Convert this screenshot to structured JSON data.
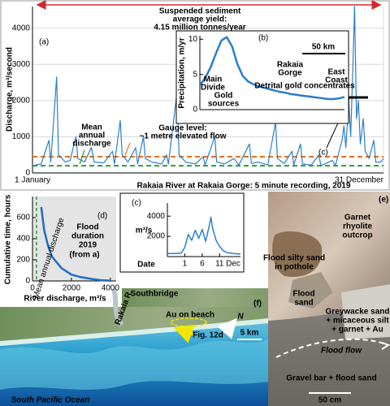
{
  "chart_data": [
    {
      "type": "line",
      "panel_label": "(a)",
      "y_label": "Discharge, m³/second",
      "x_label": "Rakaia River at Rakaia Gorge: 5 minute recording, 2019",
      "x": [
        1,
        10,
        18,
        20,
        26,
        28,
        35,
        40,
        46,
        48,
        55,
        62,
        65,
        75,
        84,
        86,
        92,
        94,
        100,
        108,
        110,
        116,
        118,
        125,
        135,
        140,
        142,
        151,
        153,
        160,
        170,
        178,
        180,
        190,
        192,
        200,
        210,
        215,
        226,
        228,
        235,
        245,
        253,
        255,
        262,
        270,
        272,
        279,
        281,
        290,
        298,
        300,
        312,
        315,
        322,
        324,
        326,
        329,
        331,
        333,
        335,
        337,
        339,
        341,
        344,
        346,
        350,
        355,
        357,
        362,
        365
      ],
      "values": [
        200,
        250,
        900,
        300,
        2650,
        500,
        300,
        350,
        1000,
        400,
        300,
        700,
        300,
        280,
        600,
        250,
        1450,
        500,
        300,
        700,
        250,
        1000,
        400,
        300,
        250,
        500,
        250,
        2250,
        500,
        300,
        250,
        450,
        220,
        1000,
        300,
        250,
        400,
        220,
        800,
        260,
        300,
        220,
        1400,
        400,
        260,
        600,
        230,
        800,
        250,
        220,
        500,
        200,
        350,
        200,
        900,
        1300,
        700,
        2000,
        1000,
        2700,
        4600,
        1500,
        2000,
        800,
        1500,
        600,
        400,
        900,
        300,
        300,
        400
      ],
      "color": "#2a7fc9",
      "xlim": [
        1,
        365
      ],
      "xticks": [
        {
          "value": 1,
          "label": "1 January"
        },
        {
          "value": 365,
          "label": "31 December"
        }
      ],
      "ylim": [
        0,
        4600
      ],
      "yticks": [
        0,
        1000,
        2000,
        3000,
        4000
      ],
      "grid": true,
      "reference_lines": [
        {
          "label_lines": [
            "Mean",
            "annual",
            "discharge"
          ],
          "value": 200,
          "color": "#2e9a3a"
        },
        {
          "label_lines": [
            "Gauge level:",
            "~1 metre elevated flow"
          ],
          "value": 450,
          "color": "#e8701a"
        }
      ],
      "annotations": [
        "Suspended sediment",
        "average yield:",
        "4.15 million tonnes/year"
      ],
      "annotation_color": "#d0282e",
      "inset_pointer": "(c)"
    },
    {
      "type": "line",
      "panel_label": "(b)",
      "y_label": "Precipitation, m/yr",
      "values": [
        3.5,
        4.5,
        6,
        8,
        9.8,
        10.3,
        9,
        6.5,
        4.8,
        4,
        3.6,
        3.3,
        3.1,
        2.9,
        2.7,
        2.5,
        2.4,
        2.2,
        2.1,
        2.0,
        1.9,
        1.8,
        1.7,
        1.6,
        1.5,
        1.5,
        1.6,
        1.8
      ],
      "color": "#2a7fc9",
      "ylim": [
        0,
        10.5
      ],
      "yticks": [
        0,
        5,
        10
      ],
      "scale_bar": "50 km",
      "annotations": [
        {
          "lines": [
            "Main",
            "Divide"
          ],
          "color": "#000000"
        },
        {
          "lines": [
            "Gold",
            "sources"
          ],
          "color": "#d0282e"
        },
        {
          "lines": [
            "Rakaia",
            "Gorge"
          ],
          "color": "#000000"
        },
        {
          "lines": [
            "East",
            "Coast"
          ],
          "color": "#000000"
        },
        {
          "lines": [
            "Detrital gold concentrates"
          ],
          "color": "#d0282e"
        }
      ]
    },
    {
      "type": "line",
      "panel_label": "(c)",
      "y_label": "m³/s",
      "x_label": "Date",
      "x_unit_label": "Dec",
      "x": [
        -4,
        -2,
        0,
        1,
        2,
        3,
        4,
        5,
        6,
        7,
        8,
        8.5,
        9,
        9.5,
        10,
        11,
        12,
        13,
        15,
        17
      ],
      "values": [
        300,
        300,
        350,
        900,
        2200,
        1600,
        2600,
        1800,
        2700,
        1500,
        3000,
        3900,
        2800,
        2200,
        1600,
        1000,
        600,
        400,
        300,
        250
      ],
      "color": "#2a7fc9",
      "xlim": [
        -4,
        17
      ],
      "xticks": [
        1,
        6,
        11
      ],
      "ylim": [
        0,
        5300
      ],
      "yticks": [
        2000,
        4000
      ]
    },
    {
      "type": "line",
      "panel_label": "(d)",
      "title_lines": [
        "Flood",
        "duration",
        "2019"
      ],
      "subtitle": "(from a)",
      "y_label": "Cumulative time, hours",
      "x_label": "River discharge, m³/s",
      "x": [
        450,
        600,
        800,
        1000,
        1500,
        2000,
        2500,
        3000,
        3500,
        4000
      ],
      "values": [
        700,
        480,
        330,
        230,
        120,
        60,
        35,
        20,
        8,
        2
      ],
      "color": "#1f6fc0",
      "xlim": [
        0,
        4300
      ],
      "xticks": [
        0,
        2000,
        4000
      ],
      "ylim": [
        0,
        800
      ],
      "yticks": [
        0,
        200,
        400,
        600
      ],
      "background": "#e4e4e4",
      "reference_lines": [
        {
          "label_lines": [
            "Mean annual discharge"
          ],
          "value": 200,
          "color": "#2e9a3a",
          "orientation": "vertical"
        }
      ]
    }
  ],
  "photos": {
    "e": {
      "label": "(e)",
      "texts": [
        [
          "Garnet",
          "rhyolite",
          "outcrop"
        ],
        [
          "Flood silty sand",
          "in pothole"
        ],
        [
          "Flood",
          "sand"
        ],
        [
          "Greywacke sand",
          "+ micaceous silt",
          "+ garnet + Au"
        ],
        [
          "Flood flow"
        ],
        [
          "Gravel bar + flood sand"
        ],
        [
          "50 cm"
        ]
      ]
    },
    "f": {
      "label": "(f)",
      "texts": [
        [
          "Southbridge"
        ],
        [
          "Rakaia R"
        ],
        [
          "Au on beach"
        ],
        [
          "Fig. 12d"
        ],
        [
          "N"
        ],
        [
          "5 km"
        ],
        [
          "South Pacific Ocean"
        ]
      ]
    }
  }
}
